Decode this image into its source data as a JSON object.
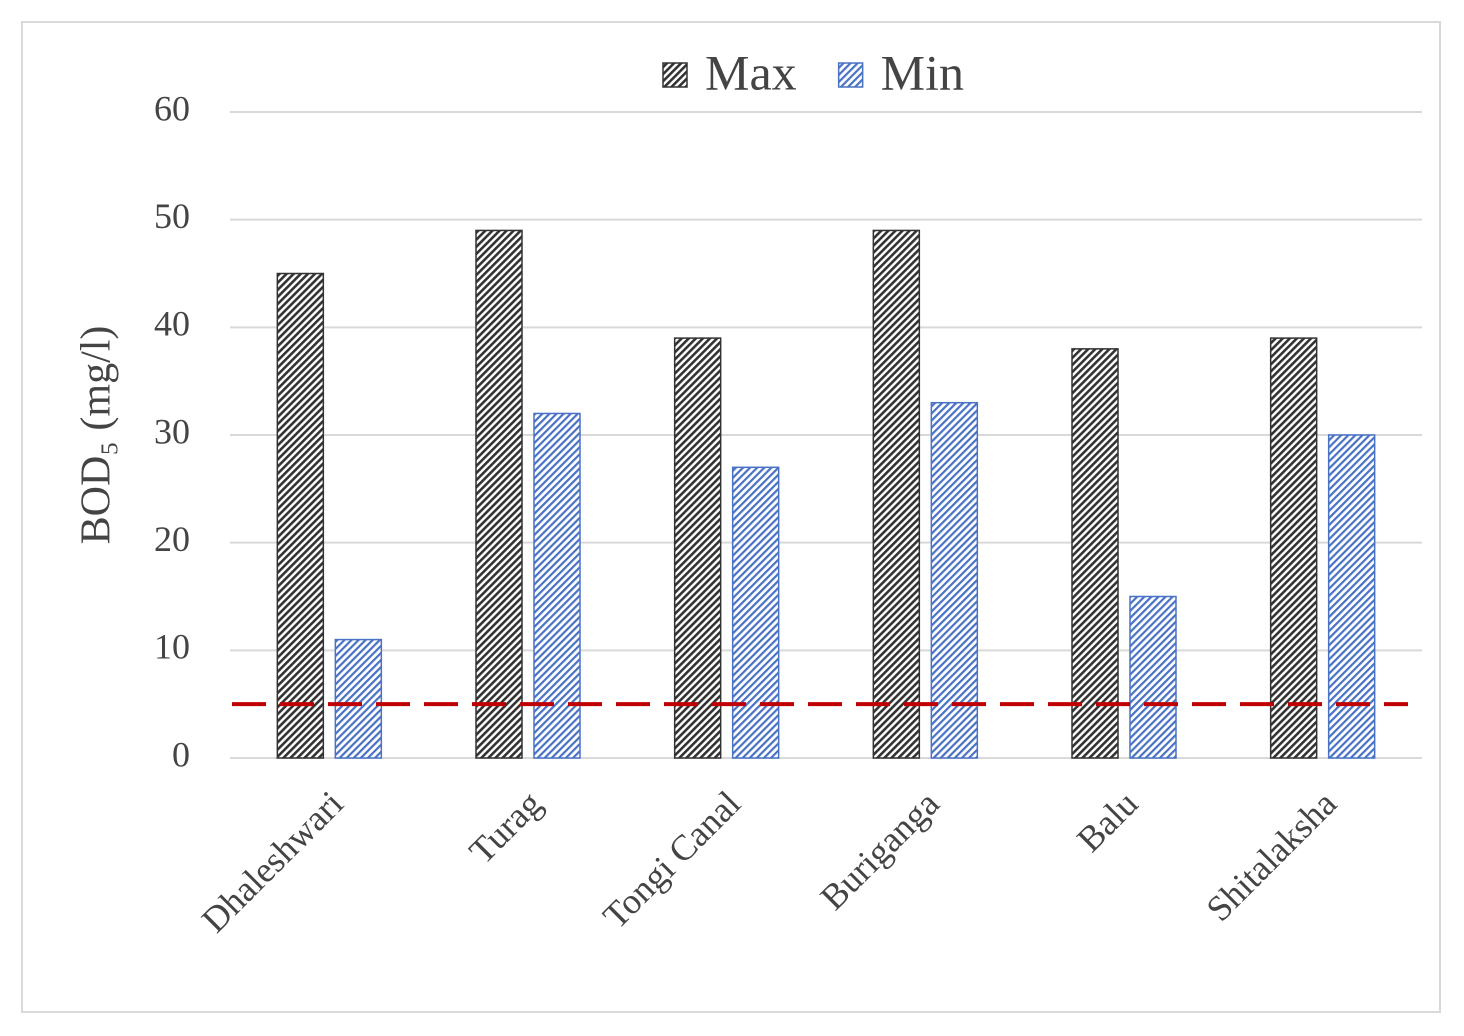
{
  "chart_data": {
    "type": "bar",
    "y_label": "BOD₅ (mg/l)",
    "categories": [
      "Dhaleshwari",
      "Turag",
      "Tongi Canal",
      "Buriganga",
      "Balu",
      "Shitalaksha"
    ],
    "series": [
      {
        "name": "Max",
        "color": "#333333",
        "values": [
          45,
          49,
          39,
          49,
          38,
          39
        ]
      },
      {
        "name": "Min",
        "color": "#4a72c4",
        "values": [
          11,
          32,
          27,
          33,
          15,
          30
        ]
      }
    ],
    "reference_line": {
      "value": 5,
      "color": "#c00000"
    },
    "ylim": [
      0,
      60
    ],
    "yticks": [
      0,
      10,
      20,
      30,
      40,
      50,
      60
    ],
    "grid": true
  }
}
